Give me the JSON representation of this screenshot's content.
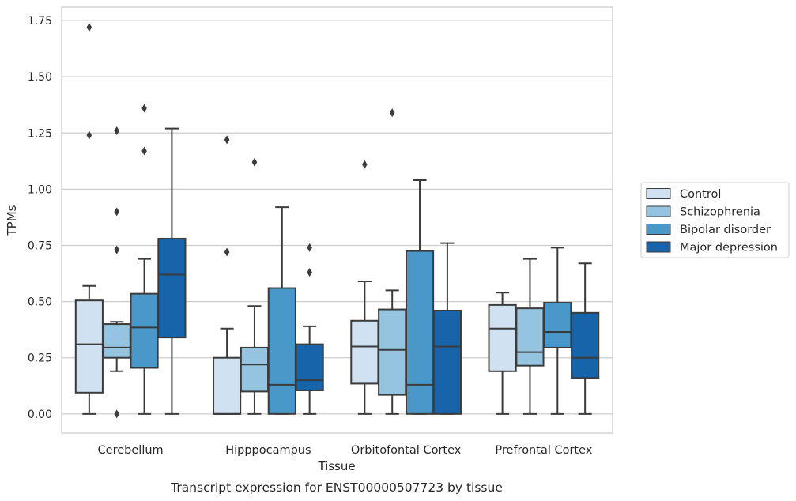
{
  "chart_data": {
    "type": "box",
    "ylabel": "TPMs",
    "xlabel": "Tissue",
    "caption": "Transcript expression for ENST00000507723 by tissue",
    "ylim": [
      -0.085,
      1.81
    ],
    "yticks": [
      {
        "value": 0.0,
        "label": "0.00"
      },
      {
        "value": 0.25,
        "label": "0.25"
      },
      {
        "value": 0.5,
        "label": "0.50"
      },
      {
        "value": 0.75,
        "label": "0.75"
      },
      {
        "value": 1.0,
        "label": "1.00"
      },
      {
        "value": 1.25,
        "label": "1.25"
      },
      {
        "value": 1.5,
        "label": "1.50"
      },
      {
        "value": 1.75,
        "label": "1.75"
      }
    ],
    "grid": "horizontal",
    "legend_position": "right",
    "categories": [
      "Cerebellum",
      "Hipppocampus",
      "Orbitofontal Cortex",
      "Prefrontal Cortex"
    ],
    "series": [
      {
        "name": "Control",
        "color": "#d0e1f2",
        "boxes": [
          {
            "whislo": 0.0,
            "q1": 0.095,
            "median": 0.31,
            "q3": 0.505,
            "whishi": 0.57,
            "fliers": [
              1.72,
              1.24
            ]
          },
          {
            "whislo": 0.0,
            "q1": 0.0,
            "median": 0.0,
            "q3": 0.25,
            "whishi": 0.38,
            "fliers": [
              1.22,
              0.72
            ]
          },
          {
            "whislo": 0.0,
            "q1": 0.135,
            "median": 0.3,
            "q3": 0.415,
            "whishi": 0.59,
            "fliers": [
              1.11
            ]
          },
          {
            "whislo": 0.0,
            "q1": 0.19,
            "median": 0.38,
            "q3": 0.485,
            "whishi": 0.54,
            "fliers": []
          }
        ]
      },
      {
        "name": "Schizophrenia",
        "color": "#94c4df",
        "boxes": [
          {
            "whislo": 0.19,
            "q1": 0.25,
            "median": 0.295,
            "q3": 0.4,
            "whishi": 0.41,
            "fliers": [
              1.26,
              0.9,
              0.73,
              0.0
            ]
          },
          {
            "whislo": 0.0,
            "q1": 0.1,
            "median": 0.22,
            "q3": 0.295,
            "whishi": 0.48,
            "fliers": [
              1.12
            ]
          },
          {
            "whislo": 0.0,
            "q1": 0.085,
            "median": 0.285,
            "q3": 0.465,
            "whishi": 0.55,
            "fliers": [
              1.34
            ]
          },
          {
            "whislo": 0.0,
            "q1": 0.215,
            "median": 0.275,
            "q3": 0.47,
            "whishi": 0.69,
            "fliers": []
          }
        ]
      },
      {
        "name": "Bipolar disorder",
        "color": "#4a98c9",
        "boxes": [
          {
            "whislo": 0.0,
            "q1": 0.205,
            "median": 0.385,
            "q3": 0.535,
            "whishi": 0.69,
            "fliers": [
              1.36,
              1.17
            ]
          },
          {
            "whislo": 0.0,
            "q1": 0.0,
            "median": 0.13,
            "q3": 0.56,
            "whishi": 0.92,
            "fliers": []
          },
          {
            "whislo": 0.0,
            "q1": 0.0,
            "median": 0.13,
            "q3": 0.725,
            "whishi": 1.04,
            "fliers": []
          },
          {
            "whislo": 0.0,
            "q1": 0.295,
            "median": 0.365,
            "q3": 0.495,
            "whishi": 0.74,
            "fliers": []
          }
        ]
      },
      {
        "name": "Major depression",
        "color": "#1764ab",
        "boxes": [
          {
            "whislo": 0.0,
            "q1": 0.34,
            "median": 0.62,
            "q3": 0.78,
            "whishi": 1.27,
            "fliers": []
          },
          {
            "whislo": 0.0,
            "q1": 0.105,
            "median": 0.15,
            "q3": 0.31,
            "whishi": 0.39,
            "fliers": [
              0.74,
              0.63
            ]
          },
          {
            "whislo": 0.0,
            "q1": 0.0,
            "median": 0.3,
            "q3": 0.46,
            "whishi": 0.76,
            "fliers": []
          },
          {
            "whislo": 0.0,
            "q1": 0.16,
            "median": 0.25,
            "q3": 0.45,
            "whishi": 0.67,
            "fliers": []
          }
        ]
      }
    ]
  }
}
